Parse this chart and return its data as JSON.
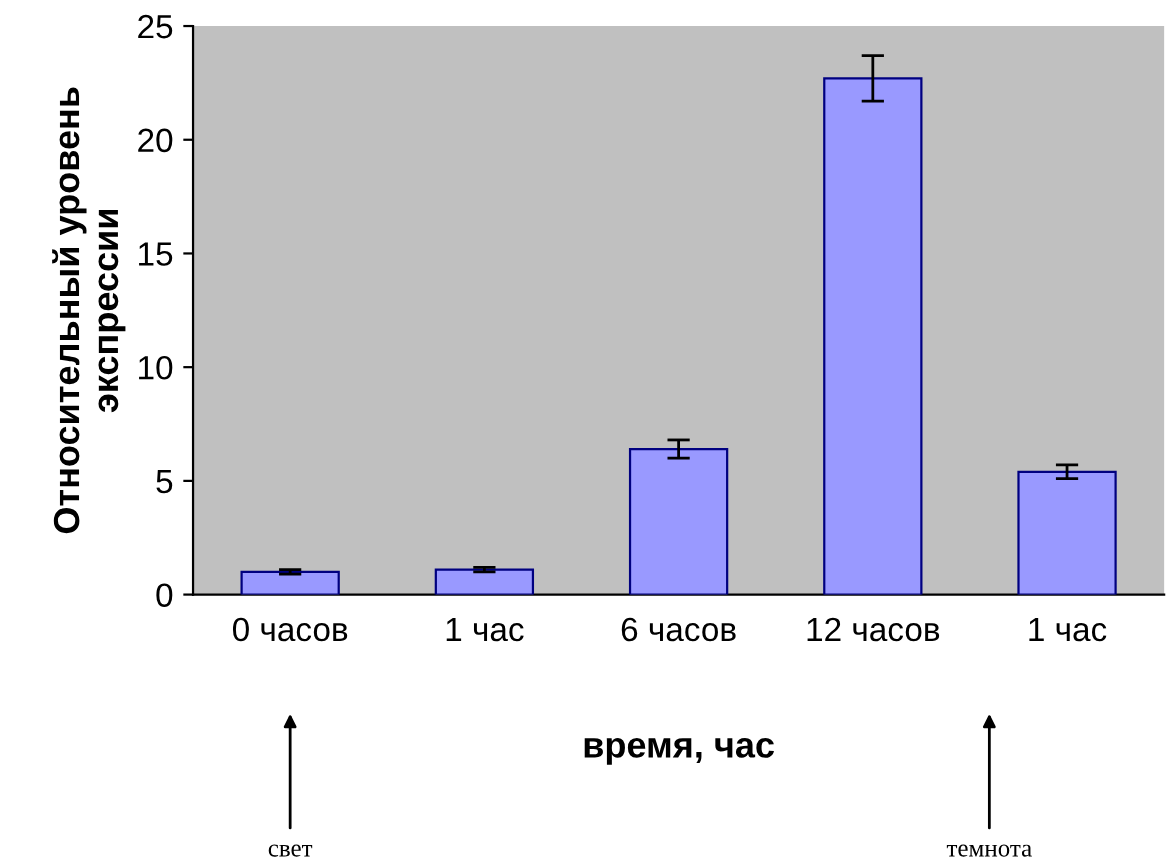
{
  "chart_data": {
    "type": "bar",
    "xlabel": "время, час",
    "ylabel": "Относительный уровень\nэкспрессии",
    "categories": [
      "0 часов",
      "1 час",
      "6 часов",
      "12 часов",
      "1 час"
    ],
    "values": [
      1.0,
      1.1,
      6.4,
      22.7,
      5.4
    ],
    "errors": [
      0.1,
      0.1,
      0.4,
      1.0,
      0.3
    ],
    "color": "#9999ff",
    "ylim": [
      0,
      25
    ],
    "yticks": [
      0,
      5,
      10,
      15,
      20,
      25
    ],
    "grid": false,
    "annotations": [
      "свет",
      "темнота"
    ]
  }
}
